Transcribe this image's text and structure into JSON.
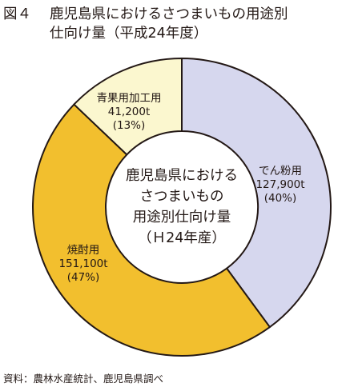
{
  "title": {
    "figure_number": "図４",
    "line1": "鹿児島県におけるさつまいもの用途別",
    "line2": "仕向け量（平成24年度）"
  },
  "chart_data": {
    "type": "pie",
    "center_label": [
      "鹿児島県における",
      "さつまいもの",
      "用途別仕向け量",
      "（Ｈ24年産）"
    ],
    "slices": [
      {
        "name": "でん粉用",
        "value": 127900,
        "value_label": "127,900t",
        "percent_label": "(40%)",
        "color": "#d6d7ee"
      },
      {
        "name": "焼酎用",
        "value": 151100,
        "value_label": "151,100t",
        "percent_label": "(47%)",
        "color": "#f2bf2e"
      },
      {
        "name": "青果用加工用",
        "value": 41200,
        "value_label": "41,200t",
        "percent_label": "(13%)",
        "color": "#fbf7cf"
      }
    ]
  },
  "source": "資料：農林水産統計、鹿児島県調べ"
}
